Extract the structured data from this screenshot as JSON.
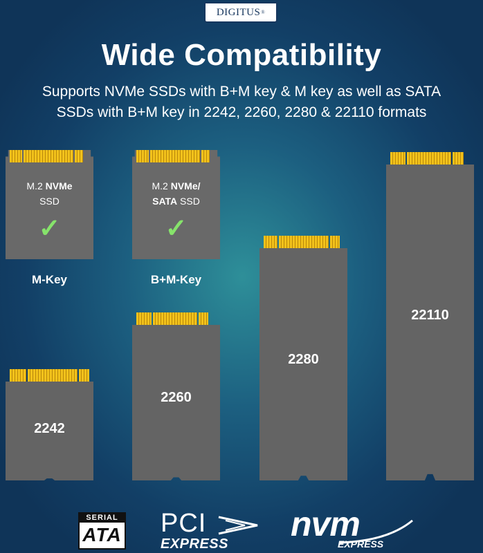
{
  "logo": "DIGITUS",
  "logo_mark": "®",
  "title": "Wide Compatibility",
  "subtitle_line1": "Supports  NVMe SSDs with B+M key & M key as well as SATA",
  "subtitle_line2": "SSDs with B+M key in 2242, 2260, 2280 & 22110 formats",
  "keys": [
    {
      "line1": "M.2 ",
      "line1_bold": "NVMe",
      "line2": "SSD",
      "line2_bold": "",
      "check": "✓",
      "label": "M-Key"
    },
    {
      "line1": "M.2 ",
      "line1_bold": "NVMe/",
      "line2": " SSD",
      "line2_bold": "SATA",
      "check": "✓",
      "label": "B+M-Key"
    }
  ],
  "drives": [
    "2242",
    "2260",
    "2280",
    "22110"
  ],
  "brands": {
    "sata_top": "SERIAL",
    "sata_bottom": "ATA",
    "pci_top": "PCI",
    "pci_bottom": "EXPRESS",
    "nvm_top": "nvm",
    "nvm_bottom": "EXPRESS"
  },
  "colors": {
    "pins": "#f2c21b",
    "check": "#86e36b",
    "card": "#696969",
    "text_navy": "#17375e"
  }
}
